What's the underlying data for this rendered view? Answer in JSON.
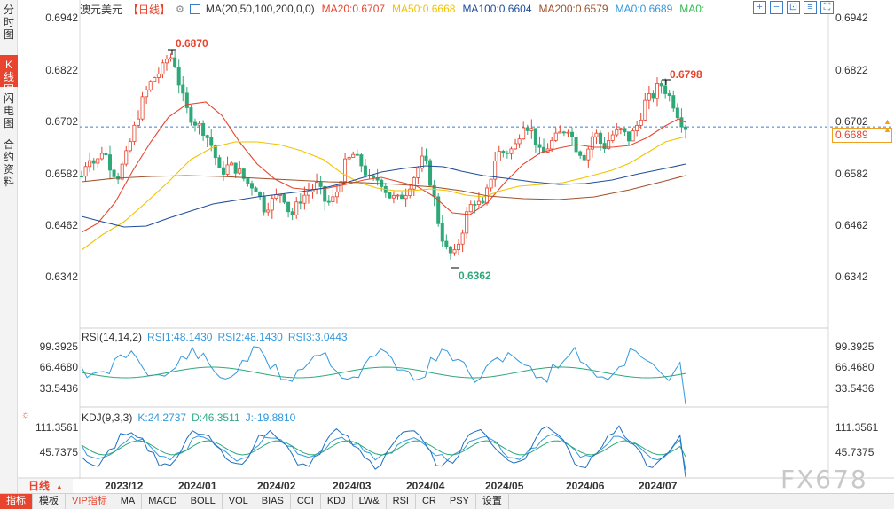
{
  "left_tabs": [
    {
      "label": "分时图",
      "active": false
    },
    {
      "label": "K线图",
      "active": true
    },
    {
      "label": "闪电图",
      "active": false
    },
    {
      "label": "合约资料",
      "active": false
    }
  ],
  "header": {
    "symbol": "澳元美元",
    "period_tag": "【日线】",
    "ma_legend": [
      {
        "text": "MA(20,50,100,200,0,0)",
        "color": "#333333"
      },
      {
        "text": "MA20:0.6707",
        "color": "#e8442e"
      },
      {
        "text": "MA50:0.6668",
        "color": "#f2c200"
      },
      {
        "text": "MA100:0.6604",
        "color": "#1f4e9a"
      },
      {
        "text": "MA200:0.6579",
        "color": "#a0522d"
      },
      {
        "text": "MA0:0.6689",
        "color": "#3399dd"
      },
      {
        "text": "MA0:",
        "color": "#33bb55"
      }
    ]
  },
  "toolbar": {
    "icons": [
      "zoom-in-icon",
      "zoom-out-icon",
      "fit-icon",
      "settings-icon",
      "fullscreen-icon"
    ],
    "glyphs": [
      "+",
      "−",
      "⊡",
      "≡",
      "⛶"
    ]
  },
  "price_axis": {
    "labels": [
      "0.6942",
      "0.6822",
      "0.6702",
      "0.6582",
      "0.6462",
      "0.6342"
    ],
    "current_price": "0.6689"
  },
  "extremes": {
    "high_1": "0.6870",
    "high_2": "0.6798",
    "low": "0.6362"
  },
  "rsi": {
    "legend": [
      {
        "text": "RSI(14,14,2)",
        "color": "#333333"
      },
      {
        "text": "RSI1:48.1430",
        "color": "#3399dd"
      },
      {
        "text": "RSI2:48.1430",
        "color": "#3399dd"
      },
      {
        "text": "RSI3:3.0443",
        "color": "#3399dd"
      }
    ],
    "axis": [
      "99.3925",
      "66.4680",
      "33.5436"
    ]
  },
  "kdj": {
    "legend": [
      {
        "text": "KDJ(9,3,3)",
        "color": "#333333"
      },
      {
        "text": "K:24.2737",
        "color": "#3399dd"
      },
      {
        "text": "D:46.3511",
        "color": "#33aa88"
      },
      {
        "text": "J:-19.8810",
        "color": "#3399dd"
      }
    ],
    "axis": [
      "111.3561",
      "45.7375"
    ]
  },
  "dates": [
    "2023/12",
    "2024/01",
    "2024/02",
    "2024/03",
    "2024/04",
    "2024/05",
    "2024/06",
    "2024/07"
  ],
  "period_button": "日线",
  "watermark": "FX678",
  "bottom_tabs": [
    {
      "label": "指标",
      "active": true,
      "vip": false
    },
    {
      "label": "模板",
      "active": false,
      "vip": false
    },
    {
      "label": "VIP指标",
      "active": false,
      "vip": true
    },
    {
      "label": "MA",
      "active": false,
      "vip": false
    },
    {
      "label": "MACD",
      "active": false,
      "vip": false
    },
    {
      "label": "BOLL",
      "active": false,
      "vip": false
    },
    {
      "label": "VOL",
      "active": false,
      "vip": false
    },
    {
      "label": "BIAS",
      "active": false,
      "vip": false
    },
    {
      "label": "CCI",
      "active": false,
      "vip": false
    },
    {
      "label": "KDJ",
      "active": false,
      "vip": false
    },
    {
      "label": "LW&",
      "active": false,
      "vip": false
    },
    {
      "label": "RSI",
      "active": false,
      "vip": false
    },
    {
      "label": "CR",
      "active": false,
      "vip": false
    },
    {
      "label": "PSY",
      "active": false,
      "vip": false
    },
    {
      "label": "设置",
      "active": false,
      "vip": false
    }
  ],
  "colors": {
    "up": "#e8442e",
    "down": "#2fa878",
    "ma20": "#e8442e",
    "ma50": "#f2c200",
    "ma100": "#1f4e9a",
    "ma200": "#a0522d",
    "current_line": "#3d7cc9"
  }
}
